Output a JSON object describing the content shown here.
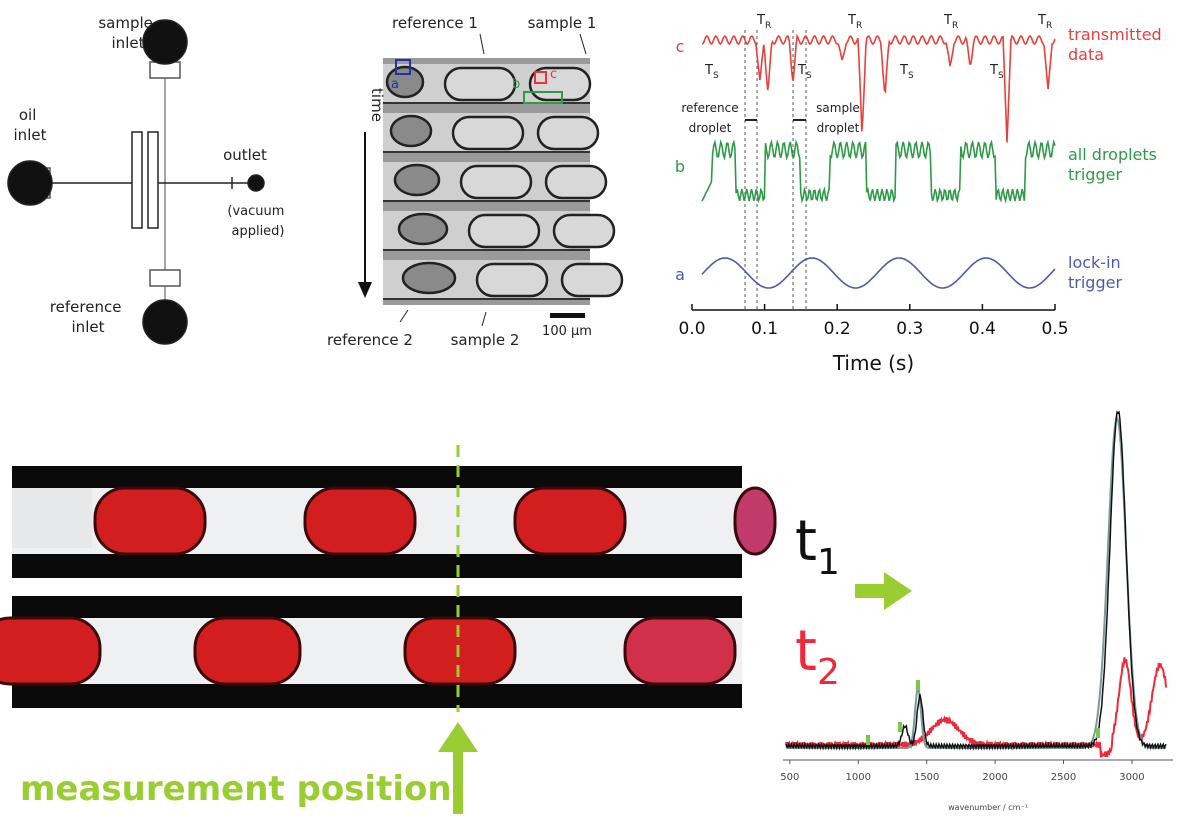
{
  "schematic": {
    "sample_inlet": [
      "sample",
      "inlet"
    ],
    "oil_inlet": [
      "oil",
      "inlet"
    ],
    "outlet": "outlet",
    "vacuum": [
      "(vacuum",
      "applied)"
    ],
    "reference_inlet": [
      "reference",
      "inlet"
    ]
  },
  "micrograph": {
    "reference_1": "reference 1",
    "sample_1": "sample 1",
    "time": "time",
    "reference_2": "reference 2",
    "sample_2": "sample 2",
    "scale": "100 µm",
    "roi_a": "a",
    "roi_b": "b",
    "roi_c": "c"
  },
  "trace_chart": {
    "x_label": "Time (s)",
    "xlim": [
      0,
      0.5
    ],
    "xticks": [
      {
        "value": 0,
        "label": "0.0"
      },
      {
        "value": 0.1,
        "label": "0.1"
      },
      {
        "value": 0.2,
        "label": "0.2"
      },
      {
        "value": 0.3,
        "label": "0.3"
      },
      {
        "value": 0.4,
        "label": "0.4"
      },
      {
        "value": 0.5,
        "label": "0.5"
      }
    ],
    "traces": [
      {
        "letter": "c",
        "name": [
          "transmitted",
          "data"
        ],
        "color": "#e8403a"
      },
      {
        "letter": "b",
        "name": [
          "all droplets",
          "trigger"
        ],
        "color": "#2e9a48"
      },
      {
        "letter": "a",
        "name": [
          "lock-in",
          "trigger"
        ],
        "color": "#4a5bb0"
      }
    ],
    "tr_labels": [
      {
        "main": "T",
        "sub": "R"
      },
      {
        "main": "T",
        "sub": "R"
      },
      {
        "main": "T",
        "sub": "R"
      },
      {
        "main": "T",
        "sub": "R"
      }
    ],
    "ts_labels": [
      {
        "main": "T",
        "sub": "S"
      },
      {
        "main": "T",
        "sub": "S"
      },
      {
        "main": "T",
        "sub": "S"
      },
      {
        "main": "T",
        "sub": "S"
      }
    ],
    "reference_droplet": [
      "reference",
      "droplet"
    ],
    "sample_droplet": [
      "sample",
      "droplet"
    ]
  },
  "measurement": {
    "label": "measurement position"
  },
  "spectrum": {
    "t1": {
      "main": "t",
      "sub": "1"
    },
    "t2": {
      "main": "t",
      "sub": "2"
    },
    "x_label": "wavenumber / cm⁻¹",
    "xlim": [
      450,
      3300
    ],
    "xticks": [
      500,
      1000,
      1500,
      2000,
      2500,
      3000
    ]
  }
}
